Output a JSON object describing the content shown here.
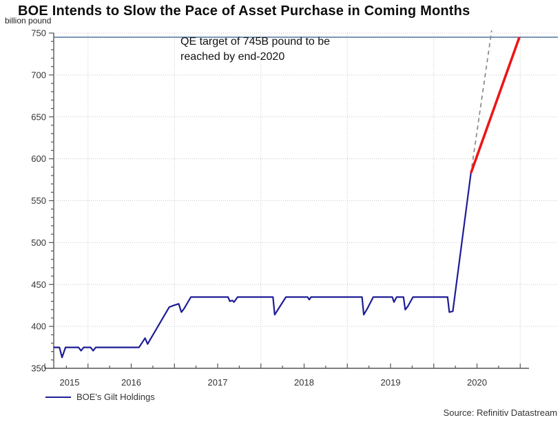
{
  "title": "BOE Intends to Slow the Pace of Asset Purchase in Coming Months",
  "unit_label": "billion pound",
  "annotation_line1": "QE target of 745B pound to be",
  "annotation_line2": "reached by end-2020",
  "legend_label": "BOE's Gilt Holdings",
  "source": "Source: Refinitiv Datastream",
  "colors": {
    "series_blue": "#1c1c96",
    "projection_red": "#ed1515",
    "previous_pace_gray": "#8c8c8c",
    "target_line": "#5b7fa6",
    "grid": "#c6c6c6",
    "axis": "#555555",
    "tick_text": "#333333"
  },
  "chart_data": {
    "type": "line",
    "title": "BOE Intends to Slow the Pace of Asset Purchase in Coming Months",
    "ylabel": "billion pound",
    "ylim": [
      350,
      750
    ],
    "y_tick_step": 50,
    "y_minor_tick_step": 10,
    "y_tick_labels": [
      "350",
      "400",
      "450",
      "500",
      "550",
      "600",
      "650",
      "700",
      "750"
    ],
    "xlim": [
      2015.5,
      2021.05
    ],
    "x_tick_years": [
      2015,
      2016,
      2017,
      2018,
      2019,
      2020
    ],
    "grid": "dotted",
    "legend_position": "bottom-left",
    "target_line": {
      "value": 745,
      "annotation": "QE target of 745B pound to be reached by end-2020"
    },
    "series": [
      {
        "id": "gilt-holdings",
        "name": "BOE's Gilt Holdings",
        "style": "solid",
        "color_key": "series_blue",
        "width": 2.2,
        "points": [
          [
            2015.6,
            375
          ],
          [
            2015.67,
            375
          ],
          [
            2015.7,
            363
          ],
          [
            2015.74,
            375
          ],
          [
            2015.89,
            375
          ],
          [
            2015.92,
            371
          ],
          [
            2015.95,
            375
          ],
          [
            2016.03,
            375
          ],
          [
            2016.06,
            371
          ],
          [
            2016.09,
            375
          ],
          [
            2016.59,
            375
          ],
          [
            2016.66,
            386
          ],
          [
            2016.69,
            379
          ],
          [
            2016.94,
            423
          ],
          [
            2016.99,
            425
          ],
          [
            2017.05,
            427
          ],
          [
            2017.08,
            417
          ],
          [
            2017.11,
            421
          ],
          [
            2017.19,
            435
          ],
          [
            2017.62,
            435
          ],
          [
            2017.64,
            430
          ],
          [
            2017.67,
            431
          ],
          [
            2017.69,
            429
          ],
          [
            2017.73,
            435
          ],
          [
            2018.14,
            435
          ],
          [
            2018.16,
            414
          ],
          [
            2018.29,
            435
          ],
          [
            2018.54,
            435
          ],
          [
            2018.56,
            432
          ],
          [
            2018.58,
            435
          ],
          [
            2019.17,
            435
          ],
          [
            2019.19,
            414
          ],
          [
            2019.23,
            421
          ],
          [
            2019.3,
            435
          ],
          [
            2019.52,
            435
          ],
          [
            2019.54,
            429
          ],
          [
            2019.57,
            435
          ],
          [
            2019.65,
            435
          ],
          [
            2019.67,
            420
          ],
          [
            2019.7,
            424
          ],
          [
            2019.76,
            435
          ],
          [
            2020.16,
            435
          ],
          [
            2020.18,
            417
          ],
          [
            2020.22,
            418
          ],
          [
            2020.43,
            583
          ]
        ]
      },
      {
        "id": "projection-to-target",
        "style": "solid",
        "color_key": "projection_red",
        "width": 3.6,
        "points": [
          [
            2020.43,
            583
          ],
          [
            2020.99,
            745
          ]
        ]
      },
      {
        "id": "previous-pace",
        "style": "dashed",
        "color_key": "previous_pace_gray",
        "width": 1.8,
        "points": [
          [
            2020.44,
            590
          ],
          [
            2020.67,
            753
          ]
        ]
      }
    ]
  }
}
